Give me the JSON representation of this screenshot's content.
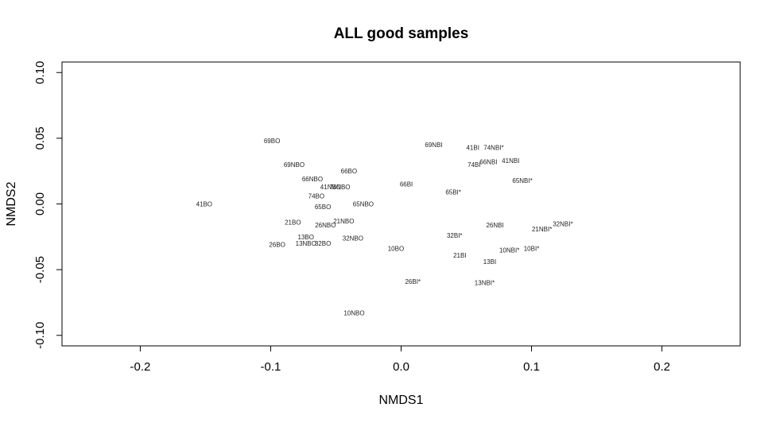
{
  "chart_data": {
    "type": "scatter",
    "title": "ALL good samples",
    "xlabel": "NMDS1",
    "ylabel": "NMDS2",
    "xlim": [
      -0.26,
      0.26
    ],
    "ylim": [
      -0.108,
      0.108
    ],
    "xticks": [
      -0.2,
      -0.1,
      0.0,
      0.1,
      0.2
    ],
    "xtick_labels": [
      "-0.2",
      "-0.1",
      "0.0",
      "0.1",
      "0.2"
    ],
    "yticks": [
      -0.1,
      -0.05,
      0.0,
      0.05,
      0.1
    ],
    "ytick_labels": [
      "-0.10",
      "-0.05",
      "0.00",
      "0.05",
      "0.10"
    ],
    "grid": false,
    "points": [
      {
        "label": "69BO",
        "x": -0.099,
        "y": 0.048
      },
      {
        "label": "69NBI",
        "x": 0.025,
        "y": 0.045
      },
      {
        "label": "41BI",
        "x": 0.055,
        "y": 0.043
      },
      {
        "label": "74NBI*",
        "x": 0.071,
        "y": 0.043
      },
      {
        "label": "69NBO",
        "x": -0.082,
        "y": 0.03
      },
      {
        "label": "41NBI",
        "x": 0.084,
        "y": 0.033
      },
      {
        "label": "66NBI",
        "x": 0.067,
        "y": 0.032
      },
      {
        "label": "74BI",
        "x": 0.056,
        "y": 0.03
      },
      {
        "label": "66BO",
        "x": -0.04,
        "y": 0.025
      },
      {
        "label": "66NBO",
        "x": -0.068,
        "y": 0.019
      },
      {
        "label": "65NBI*",
        "x": 0.093,
        "y": 0.018
      },
      {
        "label": "66BI",
        "x": 0.004,
        "y": 0.015
      },
      {
        "label": "41NBO",
        "x": -0.054,
        "y": 0.013
      },
      {
        "label": "74NBO",
        "x": -0.047,
        "y": 0.013
      },
      {
        "label": "65BI*",
        "x": 0.04,
        "y": 0.009
      },
      {
        "label": "74BO",
        "x": -0.065,
        "y": 0.006
      },
      {
        "label": "41BO",
        "x": -0.151,
        "y": 0.0
      },
      {
        "label": "65NBO",
        "x": -0.029,
        "y": 0.0
      },
      {
        "label": "65BO",
        "x": -0.06,
        "y": -0.002
      },
      {
        "label": "21NBO",
        "x": -0.044,
        "y": -0.013
      },
      {
        "label": "21BO",
        "x": -0.083,
        "y": -0.014
      },
      {
        "label": "32NBI*",
        "x": 0.124,
        "y": -0.015
      },
      {
        "label": "26NBO",
        "x": -0.058,
        "y": -0.016
      },
      {
        "label": "26NBI",
        "x": 0.072,
        "y": -0.016
      },
      {
        "label": "21NBI*",
        "x": 0.108,
        "y": -0.019
      },
      {
        "label": "32BI*",
        "x": 0.041,
        "y": -0.024
      },
      {
        "label": "13BO",
        "x": -0.073,
        "y": -0.025
      },
      {
        "label": "32NBO",
        "x": -0.037,
        "y": -0.026
      },
      {
        "label": "13NBO",
        "x": -0.073,
        "y": -0.03
      },
      {
        "label": "32BO",
        "x": -0.06,
        "y": -0.03
      },
      {
        "label": "26BO",
        "x": -0.095,
        "y": -0.031
      },
      {
        "label": "10BO",
        "x": -0.004,
        "y": -0.034
      },
      {
        "label": "10NBI*",
        "x": 0.083,
        "y": -0.035
      },
      {
        "label": "10BI*",
        "x": 0.1,
        "y": -0.034
      },
      {
        "label": "21BI",
        "x": 0.045,
        "y": -0.039
      },
      {
        "label": "13BI",
        "x": 0.068,
        "y": -0.044
      },
      {
        "label": "26BI*",
        "x": 0.009,
        "y": -0.059
      },
      {
        "label": "13NBI*",
        "x": 0.064,
        "y": -0.06
      },
      {
        "label": "10NBO",
        "x": -0.036,
        "y": -0.083
      }
    ]
  }
}
